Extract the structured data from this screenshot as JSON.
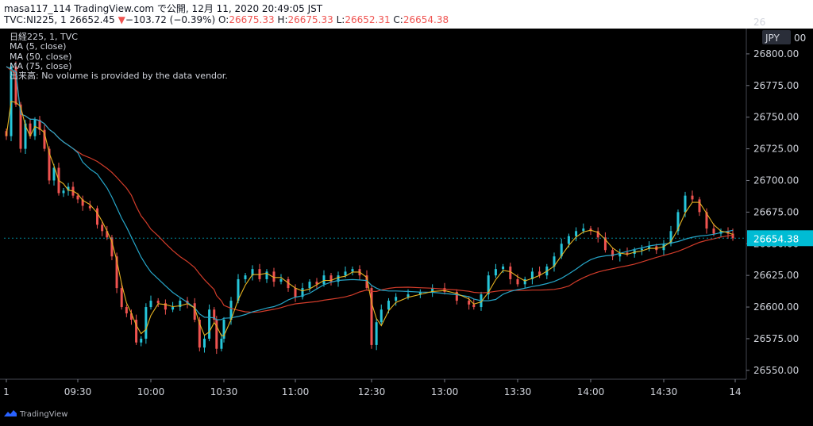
{
  "header": {
    "line1": "masa117_114 TradingView.com で公開, 12月 11, 2020 20:49:05 JST",
    "symbol": "TVC:NI225, 1",
    "last": "26652.45",
    "change": "−103.72 (−0.39%)",
    "ohlc": {
      "o_label": "O:",
      "o": "26675.33",
      "h_label": "H:",
      "h": "26675.33",
      "l_label": "L:",
      "l": "26652.31",
      "c_label": "C:",
      "c": "26654.38"
    }
  },
  "legend": {
    "symbol": "日経225, 1, TVC",
    "ma5": "MA (5, close)",
    "ma50": "MA (50, close)",
    "ma75": "MA (75, close)",
    "volume": "出来高: No volume is provided by the data vendor."
  },
  "price_badge": "26654.38",
  "currency": "JPY",
  "branding": "TradingView",
  "colors": {
    "up": "#26c6da",
    "down": "#ef5350",
    "ma5": "#e6b422",
    "ma50": "#26a6c9",
    "ma75": "#d23c2a",
    "badge": "#00bcd4"
  },
  "chart_data": {
    "type": "candlestick",
    "symbol": "TVC:NI225",
    "interval": "1",
    "currency": "JPY",
    "y_ticks": [
      "26550.00",
      "26575.00",
      "26600.00",
      "26625.00",
      "26650.00",
      "26675.00",
      "26700.00",
      "26725.00",
      "26750.00",
      "26775.00",
      "26800.00"
    ],
    "y_range": [
      26543,
      26820
    ],
    "x_ticks": [
      "1",
      "09:30",
      "10:00",
      "10:30",
      "11:00",
      "12:30",
      "13:00",
      "13:30",
      "14:00",
      "14:30",
      "14"
    ],
    "last_price": 26654.38,
    "indicators": [
      "MA (5, close)",
      "MA (50, close)",
      "MA (75, close)"
    ],
    "close_series": [
      {
        "t": "09:00",
        "v": 26735
      },
      {
        "t": "09:02",
        "v": 26790
      },
      {
        "t": "09:04",
        "v": 26760
      },
      {
        "t": "09:06",
        "v": 26725
      },
      {
        "t": "09:08",
        "v": 26745
      },
      {
        "t": "09:10",
        "v": 26735
      },
      {
        "t": "09:12",
        "v": 26748
      },
      {
        "t": "09:14",
        "v": 26740
      },
      {
        "t": "09:16",
        "v": 26725
      },
      {
        "t": "09:18",
        "v": 26700
      },
      {
        "t": "09:20",
        "v": 26710
      },
      {
        "t": "09:22",
        "v": 26690
      },
      {
        "t": "09:24",
        "v": 26692
      },
      {
        "t": "09:26",
        "v": 26695
      },
      {
        "t": "09:28",
        "v": 26688
      },
      {
        "t": "09:30",
        "v": 26685
      },
      {
        "t": "09:32",
        "v": 26680
      },
      {
        "t": "09:35",
        "v": 26678
      },
      {
        "t": "09:38",
        "v": 26665
      },
      {
        "t": "09:40",
        "v": 26660
      },
      {
        "t": "09:42",
        "v": 26655
      },
      {
        "t": "09:44",
        "v": 26640
      },
      {
        "t": "09:46",
        "v": 26615
      },
      {
        "t": "09:48",
        "v": 26600
      },
      {
        "t": "09:50",
        "v": 26595
      },
      {
        "t": "09:52",
        "v": 26590
      },
      {
        "t": "09:54",
        "v": 26572
      },
      {
        "t": "09:56",
        "v": 26575
      },
      {
        "t": "09:58",
        "v": 26600
      },
      {
        "t": "10:00",
        "v": 26605
      },
      {
        "t": "10:03",
        "v": 26603
      },
      {
        "t": "10:06",
        "v": 26598
      },
      {
        "t": "10:09",
        "v": 26600
      },
      {
        "t": "10:12",
        "v": 26605
      },
      {
        "t": "10:15",
        "v": 26603
      },
      {
        "t": "10:18",
        "v": 26590
      },
      {
        "t": "10:20",
        "v": 26568
      },
      {
        "t": "10:22",
        "v": 26575
      },
      {
        "t": "10:24",
        "v": 26598
      },
      {
        "t": "10:26",
        "v": 26590
      },
      {
        "t": "10:27",
        "v": 26567
      },
      {
        "t": "10:29",
        "v": 26575
      },
      {
        "t": "10:30",
        "v": 26590
      },
      {
        "t": "10:33",
        "v": 26605
      },
      {
        "t": "10:36",
        "v": 26622
      },
      {
        "t": "10:39",
        "v": 26625
      },
      {
        "t": "10:42",
        "v": 26630
      },
      {
        "t": "10:45",
        "v": 26622
      },
      {
        "t": "10:48",
        "v": 26628
      },
      {
        "t": "10:51",
        "v": 26620
      },
      {
        "t": "10:54",
        "v": 26622
      },
      {
        "t": "10:57",
        "v": 26615
      },
      {
        "t": "11:00",
        "v": 26608
      },
      {
        "t": "11:03",
        "v": 26615
      },
      {
        "t": "11:06",
        "v": 26620
      },
      {
        "t": "11:09",
        "v": 26618
      },
      {
        "t": "11:12",
        "v": 26625
      },
      {
        "t": "11:15",
        "v": 26620
      },
      {
        "t": "11:18",
        "v": 26625
      },
      {
        "t": "11:21",
        "v": 26628
      },
      {
        "t": "11:24",
        "v": 26630
      },
      {
        "t": "11:27",
        "v": 26625
      },
      {
        "t": "11:30",
        "v": 26615
      },
      {
        "t": "12:30",
        "v": 26570
      },
      {
        "t": "12:32",
        "v": 26588
      },
      {
        "t": "12:34",
        "v": 26598
      },
      {
        "t": "12:37",
        "v": 26605
      },
      {
        "t": "12:40",
        "v": 26608
      },
      {
        "t": "12:45",
        "v": 26610
      },
      {
        "t": "12:50",
        "v": 26612
      },
      {
        "t": "12:55",
        "v": 26615
      },
      {
        "t": "13:00",
        "v": 26612
      },
      {
        "t": "13:05",
        "v": 26605
      },
      {
        "t": "13:10",
        "v": 26602
      },
      {
        "t": "13:12",
        "v": 26600
      },
      {
        "t": "13:15",
        "v": 26610
      },
      {
        "t": "13:18",
        "v": 26625
      },
      {
        "t": "13:21",
        "v": 26630
      },
      {
        "t": "13:24",
        "v": 26632
      },
      {
        "t": "13:27",
        "v": 26622
      },
      {
        "t": "13:30",
        "v": 26618
      },
      {
        "t": "13:33",
        "v": 26622
      },
      {
        "t": "13:36",
        "v": 26628
      },
      {
        "t": "13:39",
        "v": 26625
      },
      {
        "t": "13:42",
        "v": 26632
      },
      {
        "t": "13:45",
        "v": 26640
      },
      {
        "t": "13:48",
        "v": 26650
      },
      {
        "t": "13:51",
        "v": 26656
      },
      {
        "t": "13:54",
        "v": 26660
      },
      {
        "t": "13:57",
        "v": 26662
      },
      {
        "t": "14:00",
        "v": 26660
      },
      {
        "t": "14:03",
        "v": 26655
      },
      {
        "t": "14:06",
        "v": 26645
      },
      {
        "t": "14:09",
        "v": 26640
      },
      {
        "t": "14:12",
        "v": 26643
      },
      {
        "t": "14:15",
        "v": 26642
      },
      {
        "t": "14:18",
        "v": 26645
      },
      {
        "t": "14:21",
        "v": 26646
      },
      {
        "t": "14:24",
        "v": 26648
      },
      {
        "t": "14:27",
        "v": 26645
      },
      {
        "t": "14:30",
        "v": 26650
      },
      {
        "t": "14:33",
        "v": 26660
      },
      {
        "t": "14:36",
        "v": 26675
      },
      {
        "t": "14:39",
        "v": 26688
      },
      {
        "t": "14:42",
        "v": 26685
      },
      {
        "t": "14:45",
        "v": 26675
      },
      {
        "t": "14:48",
        "v": 26662
      },
      {
        "t": "14:51",
        "v": 26658
      },
      {
        "t": "14:54",
        "v": 26660
      },
      {
        "t": "14:57",
        "v": 26658
      },
      {
        "t": "14:59",
        "v": 26654.38
      }
    ]
  }
}
